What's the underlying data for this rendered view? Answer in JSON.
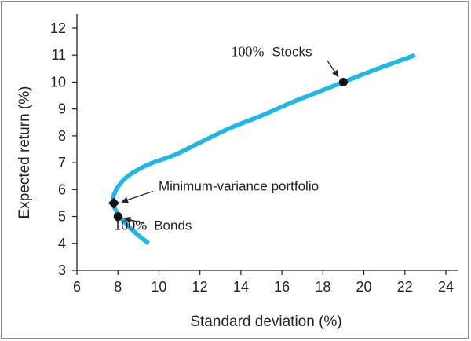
{
  "chart_data": {
    "type": "line",
    "xlabel": "Standard deviation (%)",
    "ylabel": "Expected return (%)",
    "xlim": [
      6,
      24
    ],
    "ylim": [
      3,
      12
    ],
    "xticks": [
      6,
      8,
      10,
      12,
      14,
      16,
      18,
      20,
      22,
      24
    ],
    "yticks": [
      3,
      4,
      5,
      6,
      7,
      8,
      9,
      10,
      11,
      12
    ],
    "grid": false,
    "series": [
      {
        "color": "#1fb6e8",
        "x": [
          9.5,
          9.0,
          8.5,
          8.1,
          7.85,
          7.75,
          7.8,
          8.0,
          8.4,
          9.0,
          9.7,
          10.8,
          12.0,
          13.5,
          15.0,
          16.5,
          18.0,
          19.0,
          20.5,
          22.5
        ],
        "y": [
          4.0,
          4.3,
          4.65,
          5.0,
          5.3,
          5.55,
          5.8,
          6.1,
          6.45,
          6.75,
          7.0,
          7.3,
          7.75,
          8.3,
          8.75,
          9.25,
          9.7,
          10.0,
          10.45,
          11.0
        ]
      }
    ],
    "points": [
      {
        "label_prefix": "100%",
        "label": "Stocks",
        "x": 19.0,
        "y": 10.0,
        "marker": "circle"
      },
      {
        "label_prefix": "",
        "label": "Minimum-variance portfolio",
        "x": 7.8,
        "y": 5.5,
        "marker": "diamond"
      },
      {
        "label_prefix": "100%",
        "label": "Bonds",
        "x": 8.0,
        "y": 5.0,
        "marker": "circle"
      }
    ]
  }
}
